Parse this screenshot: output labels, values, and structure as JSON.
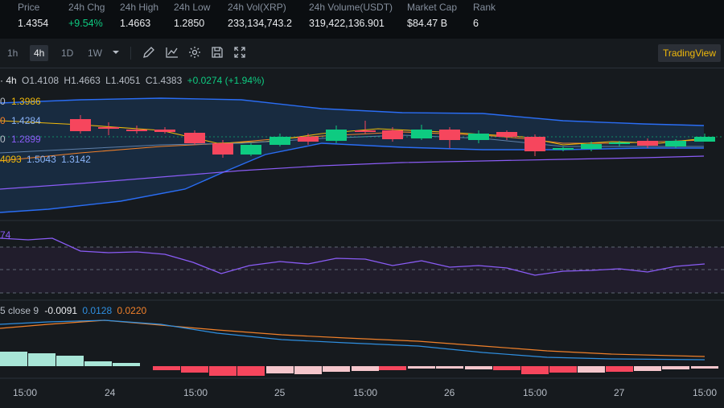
{
  "stats": [
    {
      "label": "Price",
      "value": "1.4354",
      "tone": "normal"
    },
    {
      "label": "24h Chg",
      "value": "+9.54%",
      "tone": "pos"
    },
    {
      "label": "24h High",
      "value": "1.4663",
      "tone": "normal"
    },
    {
      "label": "24h Low",
      "value": "1.2850",
      "tone": "normal"
    },
    {
      "label": "24h Vol(XRP)",
      "value": "233,134,743.2",
      "tone": "normal"
    },
    {
      "label": "24h Volume(USDT)",
      "value": "319,422,136.901",
      "tone": "normal"
    },
    {
      "label": "Market Cap",
      "value": "$84.47 B",
      "tone": "normal"
    },
    {
      "label": "Rank",
      "value": "6",
      "tone": "normal"
    }
  ],
  "toolbar": {
    "timeframes": [
      "1h",
      "4h",
      "1D",
      "1W"
    ],
    "active": "4h",
    "icons": [
      "dropdown-chevron-icon",
      "pencil-icon",
      "indicator-chart-icon",
      "gear-icon",
      "save-icon",
      "fullscreen-icon"
    ],
    "tradingview": "TradingView"
  },
  "ohlc": {
    "interval": "· 4h",
    "open": "O1.4108",
    "high": "H1.4663",
    "low": "L1.4051",
    "close": "C1.4383",
    "change": "+0.0274 (+1.94%)"
  },
  "overlays": {
    "ma1_prefix": "0",
    "ma1": "1.3986",
    "ma2_prefix": "0",
    "ma2": "1.4284",
    "ma3_prefix": "0",
    "ma3": "1.2899",
    "boll_a": "4093",
    "boll_b": "1.5043",
    "boll_c": "1.3142",
    "rsi_label": "74",
    "macd_prefix": "5 close 9",
    "macd_a": "-0.0091",
    "macd_b": "0.0128",
    "macd_c": "0.0220"
  },
  "x_axis": [
    "15:00",
    "24",
    "15:00",
    "25",
    "15:00",
    "26",
    "15:00",
    "27",
    "15:00"
  ],
  "colors": {
    "up": "#0ecb81",
    "down": "#f6465d",
    "accent": "#f0b90b",
    "band": "#2a6df4",
    "purple": "#8a5cf6",
    "macd_orange": "#f0802a",
    "macd_blue": "#2f8fe0",
    "hist_up": "#a8e6d7",
    "hist_down_light": "#f5c6cc"
  }
}
